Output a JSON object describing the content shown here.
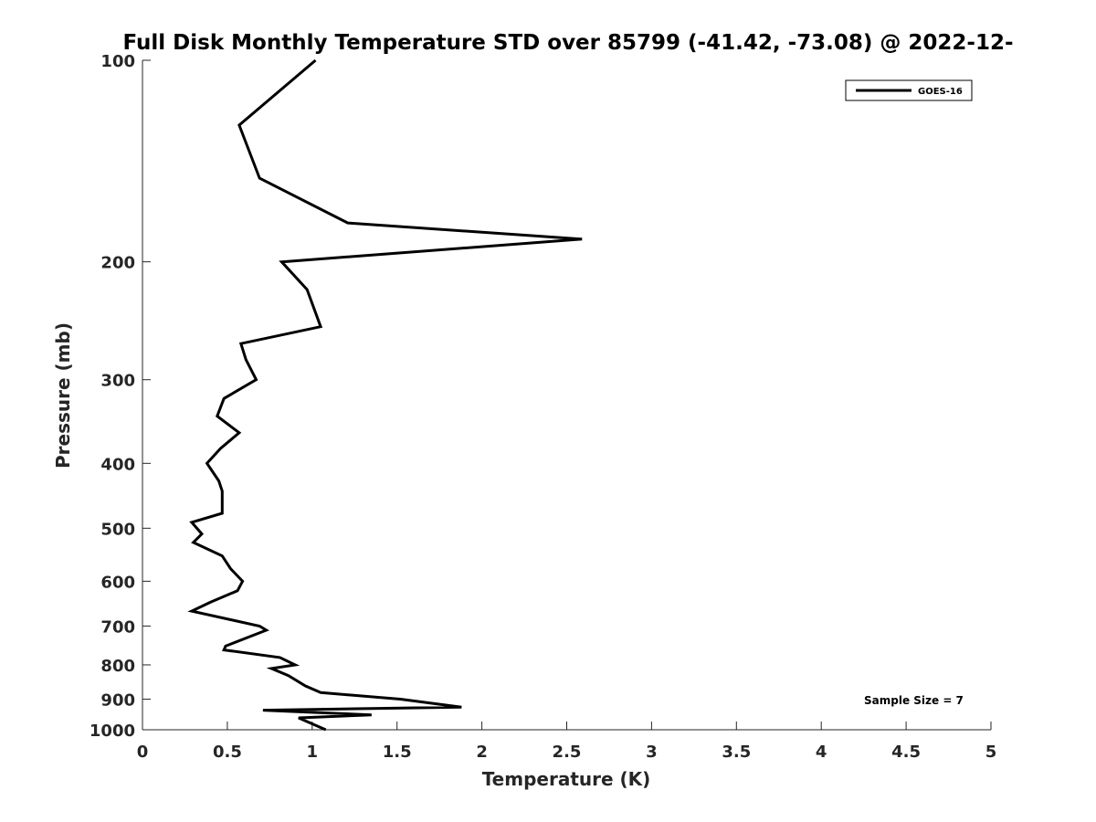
{
  "chart_data": {
    "type": "line",
    "title": "Full Disk Monthly Temperature STD over 85799 (-41.42, -73.08) @ 2022-12-",
    "xlabel": "Temperature (K)",
    "ylabel": "Pressure (mb)",
    "xlim": [
      0,
      5
    ],
    "ylim": [
      100,
      1000
    ],
    "y_scale": "log",
    "y_reversed": true,
    "x_ticks": [
      "0",
      "0.5",
      "1",
      "1.5",
      "2",
      "2.5",
      "3",
      "3.5",
      "4",
      "4.5",
      "5"
    ],
    "y_ticks": [
      "100",
      "200",
      "300",
      "400",
      "500",
      "600",
      "700",
      "800",
      "900",
      "1000"
    ],
    "grid": false,
    "legend_position": "top-right",
    "annotation": "Sample Size = 7",
    "series": [
      {
        "name": "GOES-16",
        "color": "#000000",
        "points": [
          [
            1.02,
            100
          ],
          [
            0.57,
            125
          ],
          [
            0.69,
            150
          ],
          [
            1.21,
            175
          ],
          [
            2.59,
            185
          ],
          [
            0.82,
            200
          ],
          [
            0.97,
            220
          ],
          [
            1.05,
            250
          ],
          [
            0.58,
            265
          ],
          [
            0.61,
            280
          ],
          [
            0.67,
            300
          ],
          [
            0.48,
            320
          ],
          [
            0.44,
            340
          ],
          [
            0.57,
            360
          ],
          [
            0.46,
            380
          ],
          [
            0.38,
            400
          ],
          [
            0.45,
            425
          ],
          [
            0.47,
            440
          ],
          [
            0.47,
            475
          ],
          [
            0.29,
            490
          ],
          [
            0.35,
            510
          ],
          [
            0.3,
            525
          ],
          [
            0.47,
            550
          ],
          [
            0.52,
            575
          ],
          [
            0.59,
            600
          ],
          [
            0.56,
            620
          ],
          [
            0.4,
            645
          ],
          [
            0.29,
            665
          ],
          [
            0.69,
            700
          ],
          [
            0.73,
            710
          ],
          [
            0.49,
            750
          ],
          [
            0.48,
            760
          ],
          [
            0.81,
            780
          ],
          [
            0.9,
            800
          ],
          [
            0.76,
            810
          ],
          [
            0.86,
            830
          ],
          [
            0.96,
            860
          ],
          [
            1.05,
            880
          ],
          [
            1.52,
            900
          ],
          [
            1.88,
            925
          ],
          [
            0.71,
            935
          ],
          [
            1.35,
            950
          ],
          [
            0.92,
            960
          ],
          [
            1.08,
            1000
          ]
        ]
      }
    ]
  }
}
